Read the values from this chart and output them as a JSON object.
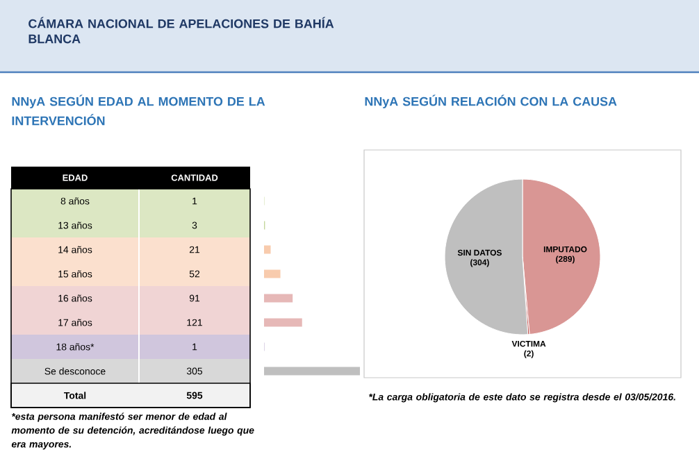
{
  "chart_data": [
    {
      "type": "bar",
      "orientation": "horizontal",
      "title": "CÁMARA NACIONAL DE APELACIONES DE BAHÍA BLANCA",
      "subtitle": "NNyA SEGÚN EDAD AL MOMENTO DE LA INTERVENCIÓN",
      "ylabel": "EDAD",
      "xlabel": "CANTIDAD",
      "categories": [
        "8 años",
        "13 años",
        "14 años",
        "15 años",
        "16 años",
        "17 años",
        "18 años*",
        "Se desconoce"
      ],
      "values": [
        1,
        3,
        21,
        52,
        91,
        121,
        1,
        305
      ],
      "colors": [
        "#c4d79b",
        "#c4d79b",
        "#f8cbad",
        "#f8cbad",
        "#e6b8b7",
        "#e6b8b7",
        "#b1a0c7",
        "#bfbfbf"
      ],
      "data_labels": true,
      "annotations": [
        "Total",
        "595",
        "*esta persona manifestó ser menor de edad al momento de su detención, acreditándose luego que era mayores."
      ]
    },
    {
      "type": "pie",
      "title": "NNyA SEGÚN RELACIÓN CON LA CAUSA",
      "categories": [
        "IMPUTADO",
        "VICTIMA",
        "SIN DATOS"
      ],
      "values": [
        289,
        2,
        304
      ],
      "colors": [
        "#d99694",
        "#c0504d",
        "#bfbfbf"
      ],
      "value_labels": [
        "(289)",
        "(2)",
        "(304)"
      ],
      "annotations": [
        "*La carga obligatoria de este dato se registra desde el 03/05/2016."
      ]
    }
  ]
}
